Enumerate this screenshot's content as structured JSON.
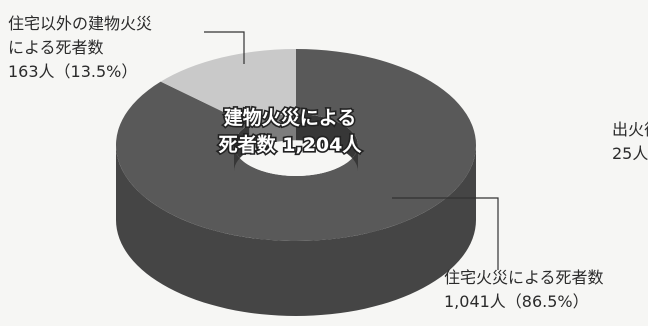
{
  "chart_data": {
    "type": "pie",
    "style": "3d-donut",
    "center_label": [
      "建物火災による",
      "死者数 1,204人"
    ],
    "total": 1204,
    "slices": [
      {
        "label_lines": [
          "住宅火災による死者数",
          "1,041人（86.5%）"
        ],
        "value": 1041,
        "percent": 86.5,
        "color": "#595959"
      },
      {
        "label_lines": [
          "住宅以外の建物火災",
          "による死者数",
          "163人（13.5%）"
        ],
        "value": 163,
        "percent": 13.5,
        "color": "#c9c9c9"
      }
    ],
    "partial_label_lines": [
      "出火後",
      "25人（"
    ]
  }
}
